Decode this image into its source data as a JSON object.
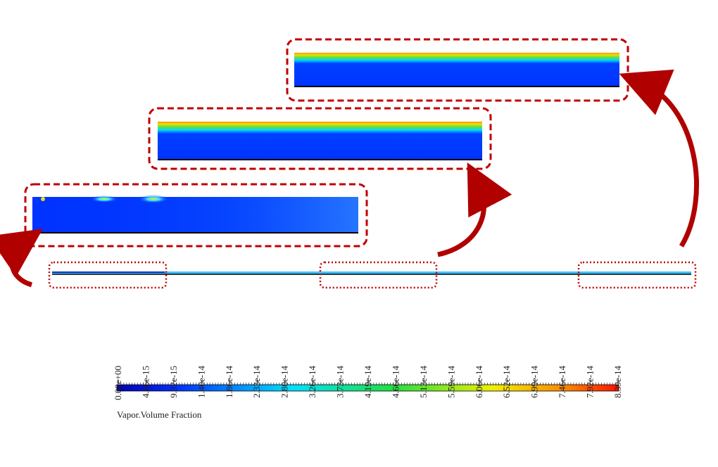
{
  "colorbar": {
    "title": "Vapor.Volume Fraction",
    "ticks": [
      "0.00e+00",
      "4.66e-15",
      "9.32e-15",
      "1.40e-14",
      "1.86e-14",
      "2.33e-14",
      "2.80e-14",
      "3.26e-14",
      "3.73e-14",
      "4.19e-14",
      "4.66e-14",
      "5.13e-14",
      "5.59e-14",
      "6.06e-14",
      "6.52e-14",
      "6.99e-14",
      "7.46e-14",
      "7.92e-14",
      "8.39e-14"
    ]
  }
}
